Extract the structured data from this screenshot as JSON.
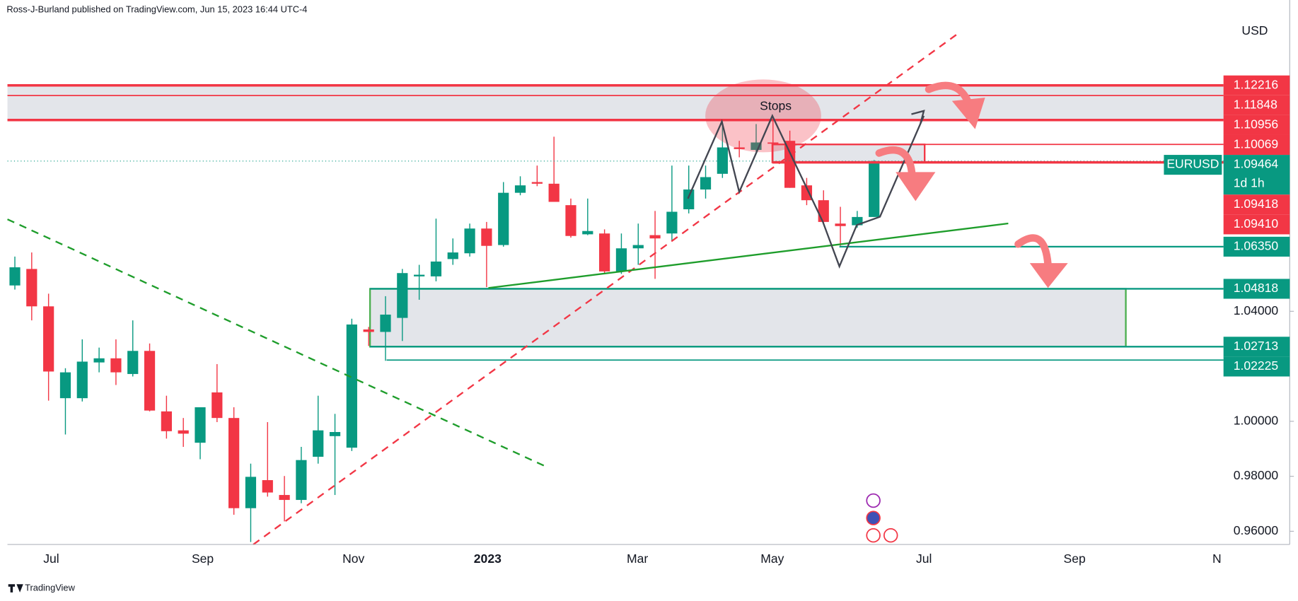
{
  "chart_data": {
    "type": "candlestick",
    "header": "Ross-J-Burland published on TradingView.com, Jun 15, 2023 16:44 UTC-4",
    "footer": "TradingView",
    "currency": "USD",
    "annotations": [
      "Stops"
    ],
    "up_color": "#089981",
    "down_color": "#f23645",
    "categories": [
      null,
      null,
      null,
      null,
      null,
      null,
      null,
      null,
      null,
      null,
      null,
      null,
      null,
      null,
      null,
      null,
      null,
      null,
      null,
      null,
      null,
      null,
      null,
      null,
      null,
      null,
      null,
      null,
      null,
      null,
      null,
      null,
      null,
      null,
      null,
      null,
      null,
      null,
      null,
      null,
      null,
      null,
      null,
      null,
      null,
      null,
      null,
      null,
      null,
      null,
      null,
      null
    ],
    "open": [
      1.0494,
      1.0554,
      1.0418,
      1.0084,
      1.0084,
      1.0214,
      1.0229,
      1.0172,
      1.0256,
      1.0036,
      0.9967,
      0.9922,
      1.0105,
      1.0012,
      0.9684,
      0.9786,
      0.9732,
      0.9714,
      0.9871,
      0.9946,
      0.9904,
      1.0334,
      1.0325,
      1.0376,
      1.0527,
      1.0527,
      1.059,
      1.0611,
      1.0701,
      1.0641,
      1.0831,
      1.087,
      1.0864,
      1.0786,
      1.068,
      1.0683,
      1.0545,
      1.0629,
      1.0677,
      1.0683,
      1.0771,
      1.0843,
      1.09,
      1.0996,
      1.0987,
      1.1014,
      1.102,
      1.0858,
      1.0804,
      1.0719,
      1.0713,
      1.0743
    ],
    "high": [
      1.0599,
      1.0614,
      1.0464,
      1.0193,
      1.0298,
      1.0268,
      1.0298,
      1.0367,
      1.0283,
      1.0093,
      1.0012,
      1.0051,
      1.0208,
      1.0051,
      0.9846,
      0.9997,
      0.9801,
      0.9907,
      1.0093,
      1.0027,
      1.0373,
      1.0343,
      1.0455,
      1.0554,
      1.0569,
      1.0737,
      1.0665,
      1.0719,
      1.0725,
      1.087,
      1.0891,
      1.093,
      1.1035,
      1.081,
      1.081,
      1.0698,
      1.0683,
      1.0719,
      1.0765,
      1.093,
      1.093,
      1.093,
      1.109,
      1.102,
      1.1081,
      1.1096,
      1.1057,
      1.0885,
      1.084,
      1.078,
      1.0765,
      1.095
    ],
    "low": [
      1.0479,
      1.0367,
      1.0075,
      0.9952,
      1.0072,
      1.0178,
      1.0132,
      1.0163,
      1.0036,
      0.9937,
      0.9907,
      0.9862,
      0.9997,
      0.966,
      0.9561,
      0.9726,
      0.9636,
      0.9702,
      0.9846,
      0.9732,
      0.9892,
      1.0274,
      1.022,
      1.0292,
      1.0442,
      1.0509,
      1.0569,
      1.0599,
      1.0488,
      1.0635,
      1.0822,
      1.0855,
      1.0804,
      1.0668,
      1.0677,
      1.0539,
      1.0536,
      1.0569,
      1.0518,
      1.0659,
      1.0756,
      1.081,
      1.0885,
      1.096,
      1.0981,
      1.0945,
      1.0849,
      1.0786,
      1.0719,
      1.0638,
      1.0704,
      1.0743
    ],
    "close": [
      1.056,
      1.0418,
      1.0181,
      1.0178,
      1.0217,
      1.0229,
      1.0178,
      1.0256,
      1.0039,
      0.9964,
      0.9955,
      1.0051,
      1.0012,
      0.9684,
      0.9798,
      0.9741,
      0.9714,
      0.9859,
      0.9967,
      0.9961,
      1.0352,
      1.0325,
      1.0388,
      1.0539,
      1.0533,
      1.0581,
      1.0614,
      1.0701,
      1.0638,
      1.0831,
      1.0858,
      1.0864,
      1.0798,
      1.0674,
      1.0692,
      1.0545,
      1.0629,
      1.0641,
      1.0665,
      1.0762,
      1.0843,
      1.0888,
      1.0996,
      1.099,
      1.1014,
      1.1011,
      1.0849,
      1.0804,
      1.0725,
      1.071,
      1.0743,
      1.09464
    ],
    "xlim": [
      -0.44,
      71.74
    ],
    "xticks": [
      {
        "value": 2.16,
        "label": "Jul"
      },
      {
        "value": 11.15,
        "label": "Sep"
      },
      {
        "value": 20.1,
        "label": "Nov"
      },
      {
        "value": 28.06,
        "label": "2023"
      },
      {
        "value": 36.95,
        "label": "Mar"
      },
      {
        "value": 44.96,
        "label": "May"
      },
      {
        "value": 53.96,
        "label": "Jul"
      },
      {
        "value": 62.9,
        "label": "Sep"
      },
      {
        "value": 71.35,
        "label": "N"
      }
    ],
    "ylim": [
      0.9552,
      1.1502
    ],
    "yticks": [
      {
        "value": 0.96,
        "label": "0.96000"
      },
      {
        "value": 0.98,
        "label": "0.98000"
      },
      {
        "value": 1.0,
        "label": "1.00000"
      },
      {
        "value": 1.04,
        "label": "1.04000"
      }
    ],
    "levels": [
      1.12216,
      1.11848,
      1.10956,
      1.10069,
      1.09418,
      {
        "value": 1.0941,
        "label": "1.09410"
      },
      {
        "value": 1.0635,
        "label": "1.06350"
      },
      1.04818,
      1.02713,
      1.02225
    ],
    "level_colors": [
      "#f23645",
      "#f23645",
      "#f23645",
      "#f23645",
      "#f23645",
      "#f23645",
      "#089981",
      "#089981",
      "#089981",
      "#089981"
    ],
    "last": {
      "symbol": "EURUSD",
      "price": 1.09464,
      "countdown": "1d 1h",
      "color": "#089981"
    }
  }
}
